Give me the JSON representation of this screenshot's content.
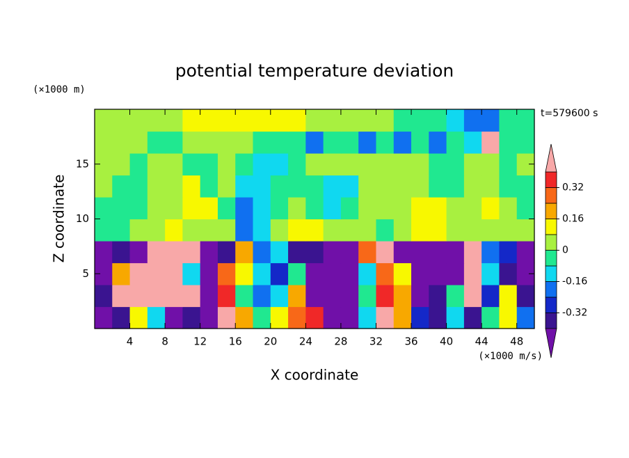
{
  "chart_data": {
    "type": "contour",
    "title": "potential temperature deviation",
    "y_unit": "(×1000 m)",
    "x_unit": "(×1000 m/s)",
    "xlabel": "X coordinate",
    "ylabel": "Z coordinate",
    "time_label": "t=579600 s",
    "xlim": [
      0,
      50
    ],
    "ylim": [
      0,
      20
    ],
    "xticks": [
      4,
      8,
      12,
      16,
      20,
      24,
      28,
      32,
      36,
      40,
      44,
      48
    ],
    "yticks": [
      5,
      10,
      15
    ],
    "x": [
      1,
      3,
      5,
      7,
      9,
      11,
      13,
      15,
      17,
      19,
      21,
      23,
      25,
      27,
      29,
      31,
      33,
      35,
      37,
      39,
      41,
      43,
      45,
      47,
      49
    ],
    "z": [
      1,
      3,
      5,
      7,
      9,
      11,
      13,
      15,
      17,
      19
    ],
    "values": [
      [
        -0.45,
        -0.36,
        0.12,
        -0.12,
        -0.45,
        -0.36,
        -0.45,
        0.45,
        0.2,
        -0.04,
        0.12,
        0.28,
        0.36,
        -0.45,
        -0.45,
        -0.12,
        0.45,
        0.2,
        -0.28,
        -0.36,
        -0.12,
        -0.36,
        -0.04,
        0.12,
        -0.2
      ],
      [
        -0.36,
        0.45,
        0.45,
        0.45,
        0.45,
        0.45,
        -0.45,
        0.36,
        -0.04,
        -0.2,
        -0.12,
        0.2,
        -0.45,
        -0.45,
        -0.45,
        -0.04,
        0.36,
        0.2,
        -0.45,
        -0.36,
        -0.04,
        0.45,
        -0.28,
        0.12,
        -0.36
      ],
      [
        -0.45,
        0.2,
        0.45,
        0.45,
        0.45,
        -0.12,
        -0.45,
        0.28,
        0.12,
        -0.12,
        -0.28,
        -0.04,
        -0.45,
        -0.45,
        -0.45,
        -0.12,
        0.28,
        0.12,
        -0.45,
        -0.45,
        -0.45,
        0.45,
        -0.12,
        -0.36,
        -0.45
      ],
      [
        -0.45,
        -0.36,
        -0.45,
        0.45,
        0.45,
        0.45,
        -0.45,
        -0.36,
        0.2,
        -0.2,
        -0.12,
        -0.36,
        -0.36,
        -0.45,
        -0.45,
        0.28,
        0.45,
        -0.45,
        -0.45,
        -0.45,
        -0.45,
        0.45,
        -0.2,
        -0.28,
        -0.45
      ],
      [
        -0.04,
        -0.04,
        0.04,
        0.04,
        0.12,
        0.04,
        0.04,
        0.04,
        -0.2,
        -0.12,
        0.04,
        0.12,
        0.12,
        0.04,
        0.04,
        0.04,
        -0.04,
        0.04,
        0.12,
        0.12,
        0.04,
        0.04,
        0.04,
        0.04,
        0.04
      ],
      [
        -0.04,
        -0.04,
        -0.04,
        0.04,
        0.04,
        0.12,
        0.12,
        -0.04,
        -0.2,
        -0.12,
        -0.04,
        0.04,
        -0.04,
        -0.12,
        -0.04,
        0.04,
        0.04,
        0.04,
        0.12,
        0.12,
        0.04,
        0.04,
        0.12,
        0.04,
        -0.04
      ],
      [
        0.04,
        -0.04,
        -0.04,
        0.04,
        0.04,
        0.12,
        -0.04,
        0.04,
        -0.12,
        -0.12,
        -0.04,
        -0.04,
        -0.04,
        -0.12,
        -0.12,
        0.04,
        0.04,
        0.04,
        0.04,
        -0.04,
        -0.04,
        0.04,
        0.04,
        -0.04,
        -0.04
      ],
      [
        0.04,
        0.04,
        -0.04,
        0.04,
        0.04,
        -0.04,
        -0.04,
        0.04,
        -0.04,
        -0.12,
        -0.12,
        -0.04,
        0.04,
        0.04,
        0.04,
        0.04,
        0.04,
        0.04,
        0.04,
        -0.04,
        -0.04,
        0.04,
        0.04,
        -0.04,
        0.04
      ],
      [
        0.04,
        0.04,
        0.04,
        -0.04,
        -0.04,
        0.04,
        0.04,
        0.04,
        0.04,
        -0.04,
        -0.04,
        -0.04,
        -0.2,
        -0.04,
        -0.04,
        -0.2,
        -0.04,
        -0.2,
        -0.04,
        -0.2,
        -0.04,
        -0.12,
        0.45,
        -0.04,
        -0.04
      ],
      [
        0.04,
        0.04,
        0.04,
        0.04,
        0.04,
        0.12,
        0.12,
        0.12,
        0.12,
        0.12,
        0.12,
        0.12,
        0.04,
        0.04,
        0.04,
        0.04,
        0.04,
        -0.04,
        -0.04,
        -0.04,
        -0.12,
        -0.2,
        -0.2,
        -0.04,
        -0.04
      ]
    ],
    "levels": [
      -0.4,
      -0.32,
      -0.24,
      -0.16,
      -0.08,
      0,
      0.08,
      0.16,
      0.24,
      0.32,
      0.4
    ],
    "colors": [
      "#7010a8",
      "#3a1490",
      "#1428c8",
      "#1070f0",
      "#10d8f0",
      "#20e890",
      "#a8f040",
      "#f8f800",
      "#f8a800",
      "#f86818",
      "#f02828",
      "#f8a8a8"
    ],
    "colorbar_ticks": [
      0.32,
      0.16,
      0,
      -0.16,
      -0.32
    ]
  }
}
